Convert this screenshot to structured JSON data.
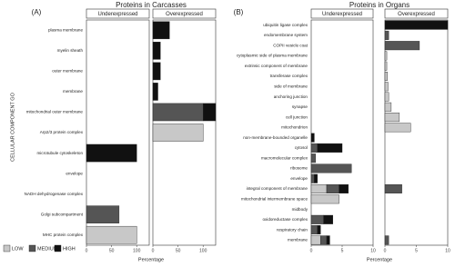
{
  "chart_data": [
    {
      "type": "bar",
      "orientation": "horizontal",
      "label": "(A)",
      "title": "Proteins in Carcasses",
      "ylabel": "CELLULAR COMPONENT GO",
      "xlabel": "Percentage",
      "categories": [
        "plasma membrane",
        "myelin sheath",
        "outer membrane",
        "membrane",
        "mitochondrial outer membrane",
        "Arp2/3 protein complex",
        "microtubule cytoskeleton",
        "envelope",
        "NADH dehydrogenase complex",
        "Golgi subcompartment",
        "MHC protein complex"
      ],
      "facets": [
        {
          "title": "Underexpressed",
          "xlim": [
            0,
            125
          ],
          "xticks": [
            0,
            50,
            100
          ],
          "series": [
            {
              "name": "LOW",
              "color": "#c8c8c8",
              "values": [
                0,
                0,
                0,
                0,
                0,
                0,
                0,
                0,
                0,
                0,
                100
              ]
            },
            {
              "name": "MEDIUM",
              "color": "#555555",
              "values": [
                0,
                0,
                0,
                0,
                0,
                0,
                0,
                0,
                0,
                65,
                0
              ]
            },
            {
              "name": "HIGH",
              "color": "#111111",
              "values": [
                0,
                0,
                0,
                0,
                0,
                0,
                100,
                0,
                0,
                0,
                0
              ]
            }
          ]
        },
        {
          "title": "Overexpressed",
          "xlim": [
            0,
            125
          ],
          "xticks": [
            0,
            50,
            100
          ],
          "series": [
            {
              "name": "LOW",
              "color": "#c8c8c8",
              "values": [
                0,
                0,
                0,
                0,
                0,
                100,
                0,
                0,
                0,
                0,
                0
              ]
            },
            {
              "name": "MEDIUM",
              "color": "#555555",
              "values": [
                0,
                0,
                0,
                0,
                100,
                0,
                0,
                0,
                0,
                0,
                0
              ]
            },
            {
              "name": "HIGH",
              "color": "#111111",
              "values": [
                33,
                15,
                15,
                10,
                25,
                0,
                0,
                0,
                0,
                0,
                0
              ]
            }
          ]
        }
      ]
    },
    {
      "type": "bar",
      "orientation": "horizontal",
      "label": "(B)",
      "title": "Proteins in Organs",
      "xlabel": "Percentage",
      "categories": [
        "ubiquitin ligase complex",
        "endomembrane system",
        "COPII vesicle coat",
        "cytoplasmic side of plasma membrane",
        "extrinsic component of membrane",
        "transferase complex",
        "side of membrane",
        "anchoring junction",
        "synapse",
        "cell junction",
        "mitochondrion",
        "non-membrane-bounded organelle",
        "cytosol",
        "macromolecular complex",
        "ribosome",
        "envelope",
        "integral component of membrane",
        "mitochondrial intermembrane space",
        "midbody",
        "oxidoreductase complex",
        "respiratory chain",
        "membrane"
      ],
      "facets": [
        {
          "title": "Underexpressed",
          "xlim": [
            0,
            10
          ],
          "xticks": [
            0,
            5,
            10
          ],
          "series": [
            {
              "name": "LOW",
              "color": "#c8c8c8",
              "values": [
                0,
                0,
                0,
                0,
                0,
                0,
                0,
                0,
                0,
                0,
                0,
                0,
                0,
                0,
                0,
                0,
                2.5,
                4.5,
                0,
                0,
                0,
                1.5
              ]
            },
            {
              "name": "MEDIUM",
              "color": "#555555",
              "values": [
                0,
                0,
                0,
                0,
                0,
                0,
                0,
                0,
                0,
                0,
                0,
                0,
                1,
                0.7,
                6.5,
                0.5,
                2,
                0,
                0,
                2,
                1,
                1
              ]
            },
            {
              "name": "HIGH",
              "color": "#111111",
              "values": [
                0,
                0,
                0,
                0,
                0,
                0,
                0,
                0,
                0,
                0,
                0,
                0.5,
                4,
                0,
                0,
                0.5,
                1.5,
                0,
                0,
                1.5,
                0.5,
                0.5
              ]
            }
          ]
        },
        {
          "title": "Overexpressed",
          "xlim": [
            0,
            10
          ],
          "xticks": [
            0,
            5,
            10
          ],
          "series": [
            {
              "name": "LOW",
              "color": "#c8c8c8",
              "values": [
                0,
                0,
                0,
                0.3,
                0.3,
                0.4,
                0.5,
                0.6,
                1,
                2.3,
                4.1,
                0,
                0,
                0,
                0,
                0,
                0,
                0,
                0,
                0,
                0,
                0
              ]
            },
            {
              "name": "MEDIUM",
              "color": "#555555",
              "values": [
                0,
                0.6,
                5.5,
                0,
                0,
                0,
                0,
                0,
                0,
                0,
                0,
                0,
                0,
                0,
                0,
                0,
                2.7,
                0,
                0,
                0,
                0,
                0.6
              ]
            },
            {
              "name": "HIGH",
              "color": "#111111",
              "values": [
                10,
                0,
                0,
                0,
                0,
                0,
                0,
                0,
                0,
                0,
                0,
                0,
                0,
                0,
                0,
                0,
                0,
                0,
                0,
                0,
                0,
                0
              ]
            }
          ]
        }
      ]
    }
  ]
}
